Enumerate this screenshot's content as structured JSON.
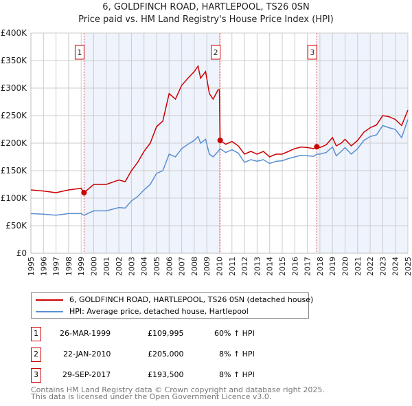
{
  "chart_data": {
    "type": "line",
    "title": "6, GOLDFINCH ROAD, HARTLEPOOL, TS26 0SN",
    "subtitle": "Price paid vs. HM Land Registry's House Price Index (HPI)",
    "xlabel": "",
    "ylabel": "",
    "xlim": [
      1995,
      2025
    ],
    "ylim": [
      0,
      400000
    ],
    "x_ticks": [
      "1995",
      "1996",
      "1997",
      "1998",
      "1999",
      "2000",
      "2001",
      "2002",
      "2003",
      "2004",
      "2005",
      "2006",
      "2007",
      "2008",
      "2009",
      "2010",
      "2011",
      "2012",
      "2013",
      "2014",
      "2015",
      "2016",
      "2017",
      "2018",
      "2019",
      "2020",
      "2021",
      "2022",
      "2023",
      "2024",
      "2025"
    ],
    "y_ticks": [
      {
        "v": 0,
        "label": "£0"
      },
      {
        "v": 50000,
        "label": "£50K"
      },
      {
        "v": 100000,
        "label": "£100K"
      },
      {
        "v": 150000,
        "label": "£150K"
      },
      {
        "v": 200000,
        "label": "£200K"
      },
      {
        "v": 250000,
        "label": "£250K"
      },
      {
        "v": 300000,
        "label": "£300K"
      },
      {
        "v": 350000,
        "label": "£350K"
      },
      {
        "v": 400000,
        "label": "£400K"
      }
    ],
    "grid": true,
    "series": [
      {
        "name": "6, GOLDFINCH ROAD, HARTLEPOOL, TS26 0SN (detached house)",
        "color": "#cc0000",
        "x": [
          1995,
          1996,
          1997,
          1998,
          1999,
          1999.23,
          2000,
          2001,
          2002,
          2002.5,
          2003,
          2003.5,
          2004,
          2004.5,
          2005,
          2005.5,
          2006,
          2006.5,
          2007,
          2007.5,
          2008,
          2008.3,
          2008.5,
          2008.9,
          2009.2,
          2009.5,
          2009.9,
          2010.0,
          2010.06,
          2010.5,
          2011,
          2011.5,
          2012,
          2012.5,
          2013,
          2013.5,
          2014,
          2014.5,
          2015,
          2015.5,
          2016,
          2016.5,
          2017,
          2017.5,
          2017.75,
          2018,
          2018.5,
          2019,
          2019.3,
          2019.7,
          2020,
          2020.5,
          2021,
          2021.5,
          2022,
          2022.5,
          2023,
          2023.5,
          2024,
          2024.5,
          2025
        ],
        "y": [
          115000,
          113000,
          110000,
          115000,
          118000,
          109995,
          125000,
          125000,
          133000,
          130000,
          150000,
          165000,
          185000,
          200000,
          230000,
          240000,
          290000,
          280000,
          305000,
          318000,
          330000,
          340000,
          318000,
          330000,
          290000,
          280000,
          297000,
          297000,
          205000,
          198000,
          203000,
          195000,
          180000,
          185000,
          180000,
          185000,
          175000,
          180000,
          180000,
          185000,
          190000,
          193000,
          192000,
          190000,
          193500,
          192000,
          197000,
          210000,
          195000,
          200000,
          207000,
          195000,
          205000,
          220000,
          228000,
          233000,
          250000,
          248000,
          243000,
          232000,
          260000
        ]
      },
      {
        "name": "HPI: Average price, detached house, Hartlepool",
        "color": "#5b8fd0",
        "x": [
          1995,
          1996,
          1997,
          1998,
          1999,
          1999.23,
          2000,
          2001,
          2002,
          2002.5,
          2003,
          2003.5,
          2004,
          2004.5,
          2005,
          2005.5,
          2006,
          2006.5,
          2007,
          2007.5,
          2008,
          2008.3,
          2008.5,
          2008.9,
          2009.2,
          2009.5,
          2009.9,
          2010.06,
          2010.5,
          2011,
          2011.5,
          2012,
          2012.5,
          2013,
          2013.5,
          2014,
          2014.5,
          2015,
          2015.5,
          2016,
          2016.5,
          2017,
          2017.5,
          2017.75,
          2018,
          2018.5,
          2019,
          2019.3,
          2019.7,
          2020,
          2020.5,
          2021,
          2021.5,
          2022,
          2022.5,
          2023,
          2023.5,
          2024,
          2024.5,
          2025
        ],
        "y": [
          72000,
          71000,
          69000,
          72000,
          72000,
          69000,
          77000,
          77000,
          83000,
          82000,
          95000,
          103000,
          115000,
          125000,
          145000,
          150000,
          180000,
          175000,
          190000,
          198000,
          205000,
          212000,
          200000,
          207000,
          180000,
          175000,
          185000,
          190000,
          183000,
          188000,
          182000,
          165000,
          170000,
          167000,
          170000,
          163000,
          167000,
          168000,
          172000,
          175000,
          178000,
          177000,
          176000,
          180000,
          180000,
          183000,
          193000,
          177000,
          185000,
          192000,
          180000,
          190000,
          205000,
          212000,
          215000,
          232000,
          228000,
          225000,
          210000,
          243000
        ]
      }
    ],
    "sales": [
      {
        "label": "1",
        "x": 1999.23,
        "y": 109995,
        "date": "26-MAR-1999",
        "price": "£109,995",
        "hpi": "60% ↑ HPI"
      },
      {
        "label": "2",
        "x": 2010.06,
        "y": 205000,
        "date": "22-JAN-2010",
        "price": "£205,000",
        "hpi": "8% ↑ HPI"
      },
      {
        "label": "3",
        "x": 2017.75,
        "y": 193500,
        "date": "29-SEP-2017",
        "price": "£193,500",
        "hpi": "8% ↑ HPI"
      }
    ],
    "legend_position": "below"
  },
  "footer": [
    "Contains HM Land Registry data © Crown copyright and database right 2025.",
    "This data is licensed under the Open Government Licence v3.0."
  ]
}
